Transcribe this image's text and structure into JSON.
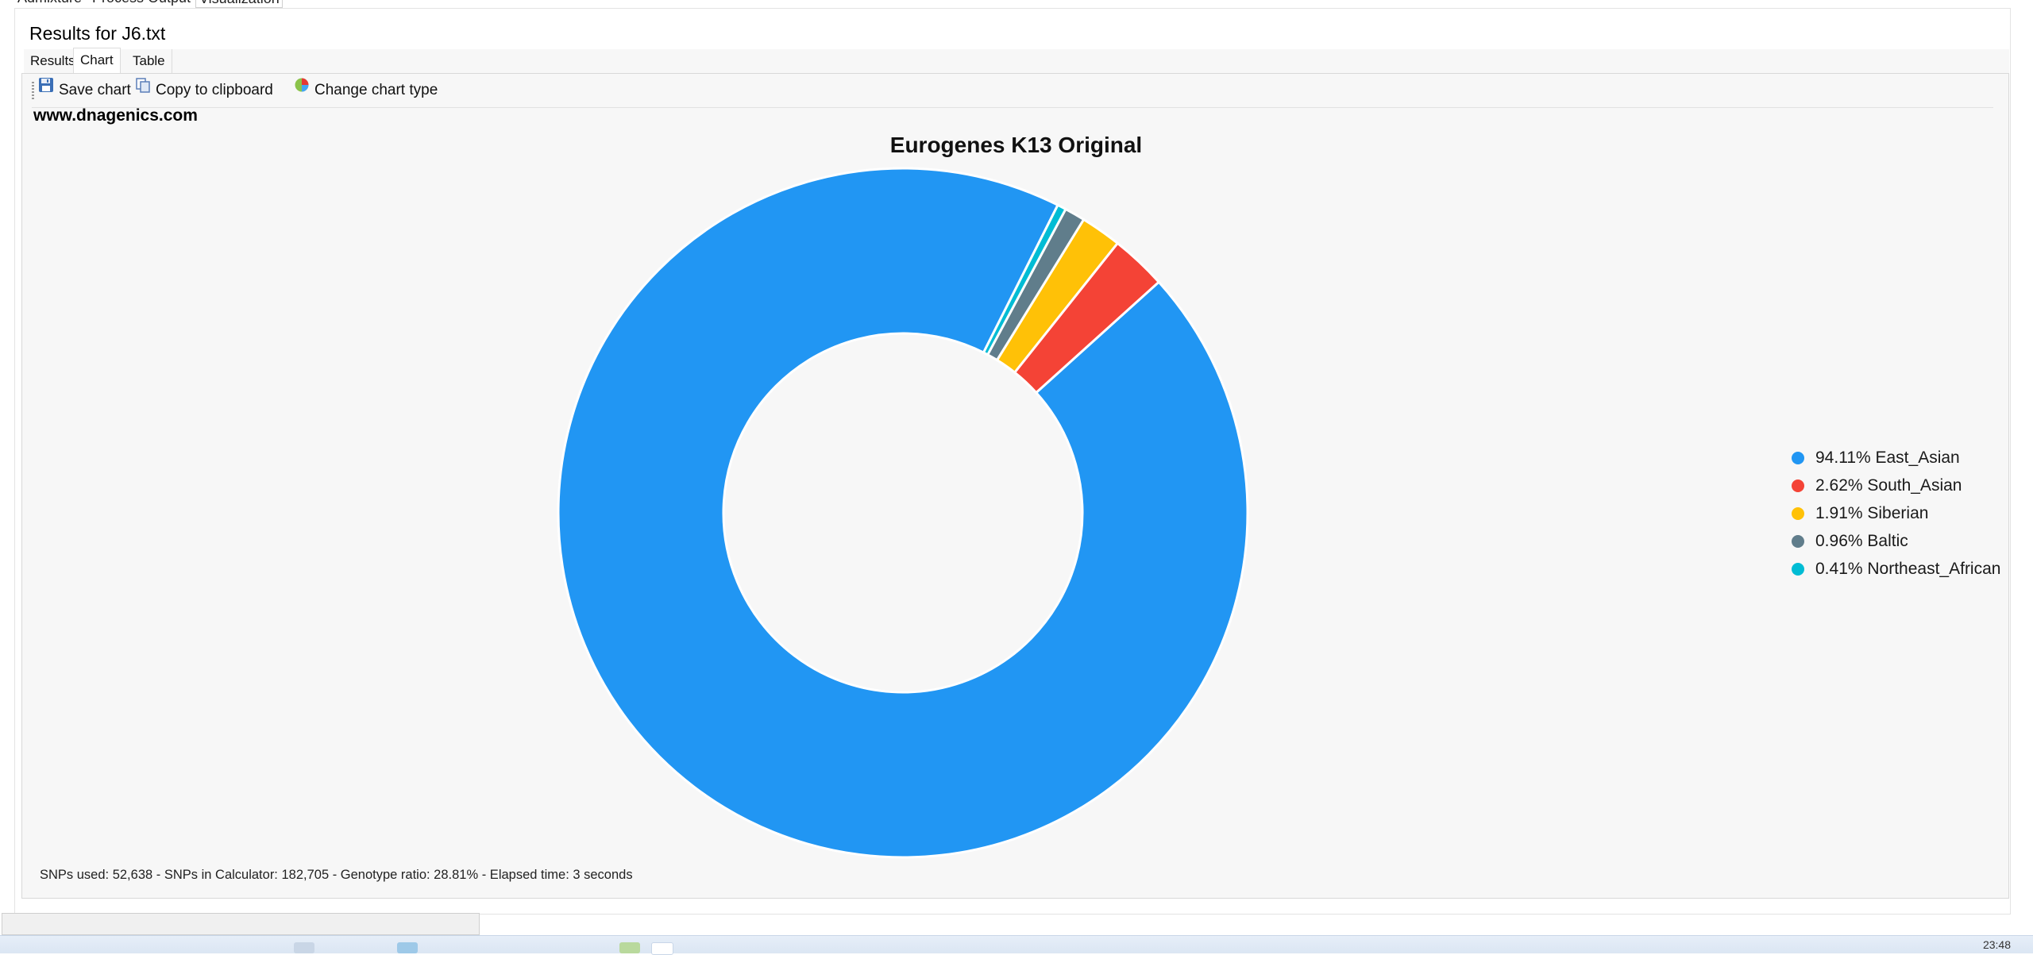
{
  "top_tabs": [
    "Admixture",
    "Process Output",
    "Visualization"
  ],
  "results_title": "Results for J6.txt",
  "sub_tabs": [
    "Results",
    "Chart",
    "Table"
  ],
  "active_sub_tab": "Chart",
  "toolbar": {
    "save_label": "Save chart",
    "copy_label": "Copy to clipboard",
    "change_label": "Change chart type",
    "save_icon": "floppy-disk-icon",
    "copy_icon": "copy-icon",
    "change_icon": "pie-chart-icon"
  },
  "watermark": "www.dnagenics.com",
  "chart_data": {
    "type": "pie",
    "style": "donut",
    "title": "Eurogenes K13 Original",
    "labels": [
      "East_Asian",
      "South_Asian",
      "Siberian",
      "Baltic",
      "Northeast_African"
    ],
    "values": [
      94.11,
      2.62,
      1.91,
      0.96,
      0.41
    ],
    "legend_labels": [
      "94.11% East_Asian",
      "2.62% South_Asian",
      "1.91% Siberian",
      "0.96% Baltic",
      "0.41% Northeast_African"
    ],
    "colors": [
      "#2196F3",
      "#F44336",
      "#FFC107",
      "#607D8B",
      "#00BCD4"
    ],
    "legend_position": "right"
  },
  "status_text": "SNPs used: 52,638 - SNPs in Calculator: 182,705 - Genotype ratio: 28.81% - Elapsed time: 3 seconds",
  "taskbar_clock": "23:48"
}
